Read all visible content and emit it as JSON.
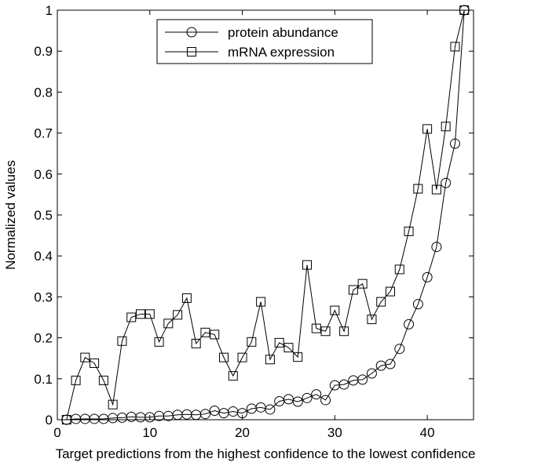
{
  "chart_data": {
    "type": "line",
    "xlabel": "Target predictions from the highest confidence to the lowest confidence",
    "ylabel": "Normalized values",
    "xlim": [
      0,
      45
    ],
    "ylim": [
      0,
      1
    ],
    "x_ticks": [
      0,
      10,
      20,
      30,
      40
    ],
    "y_ticks": [
      0,
      0.1,
      0.2,
      0.3,
      0.4,
      0.5,
      0.6,
      0.7,
      0.8,
      0.9,
      1
    ],
    "y_tick_labels": [
      "0",
      "0.1",
      "0.2",
      "0.3",
      "0.4",
      "0.5",
      "0.6",
      "0.7",
      "0.8",
      "0.9",
      "1"
    ],
    "grid": false,
    "legend_position": "top-center",
    "x": [
      1,
      2,
      3,
      4,
      5,
      6,
      7,
      8,
      9,
      10,
      11,
      12,
      13,
      14,
      15,
      16,
      17,
      18,
      19,
      20,
      21,
      22,
      23,
      24,
      25,
      26,
      27,
      28,
      29,
      30,
      31,
      32,
      33,
      34,
      35,
      36,
      37,
      38,
      39,
      40,
      41,
      42,
      43,
      44
    ],
    "series": [
      {
        "name": "protein abundance",
        "marker": "circle",
        "color": "#000000",
        "values": [
          0,
          0.002,
          0.002,
          0.002,
          0.002,
          0.004,
          0.005,
          0.007,
          0.006,
          0.006,
          0.009,
          0.009,
          0.012,
          0.013,
          0.012,
          0.014,
          0.022,
          0.016,
          0.02,
          0.016,
          0.027,
          0.03,
          0.025,
          0.045,
          0.05,
          0.044,
          0.053,
          0.062,
          0.048,
          0.084,
          0.086,
          0.096,
          0.098,
          0.113,
          0.132,
          0.136,
          0.173,
          0.233,
          0.282,
          0.348,
          0.422,
          0.578,
          0.674,
          1.0
        ]
      },
      {
        "name": "mRNA expression",
        "marker": "square",
        "color": "#000000",
        "values": [
          0,
          0.096,
          0.152,
          0.138,
          0.096,
          0.037,
          0.192,
          0.25,
          0.258,
          0.258,
          0.19,
          0.235,
          0.256,
          0.297,
          0.186,
          0.213,
          0.208,
          0.152,
          0.107,
          0.152,
          0.19,
          0.288,
          0.147,
          0.188,
          0.176,
          0.153,
          0.378,
          0.223,
          0.216,
          0.267,
          0.216,
          0.317,
          0.332,
          0.245,
          0.288,
          0.313,
          0.367,
          0.46,
          0.564,
          0.71,
          0.562,
          0.716,
          0.911,
          1.0
        ]
      }
    ]
  }
}
